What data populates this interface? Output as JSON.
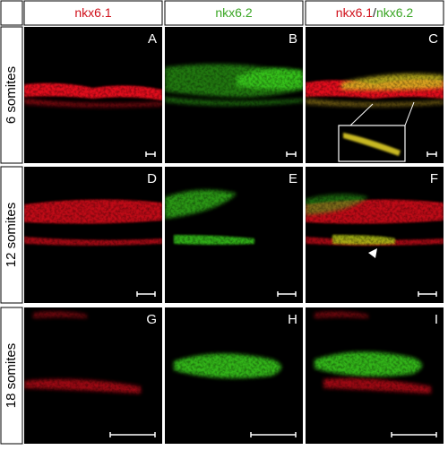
{
  "headers": [
    {
      "parts": [
        "nkx6.1"
      ]
    },
    {
      "parts": [
        "nkx6.2"
      ]
    },
    {
      "parts": [
        "nkx6.1",
        "/",
        "nkx6.2"
      ]
    }
  ],
  "rows": [
    {
      "label": "6 somites",
      "panels": [
        "A",
        "B",
        "C"
      ]
    },
    {
      "label": "12 somites",
      "panels": [
        "D",
        "E",
        "F"
      ]
    },
    {
      "label": "18 somites",
      "panels": [
        "G",
        "H",
        "I"
      ]
    }
  ]
}
